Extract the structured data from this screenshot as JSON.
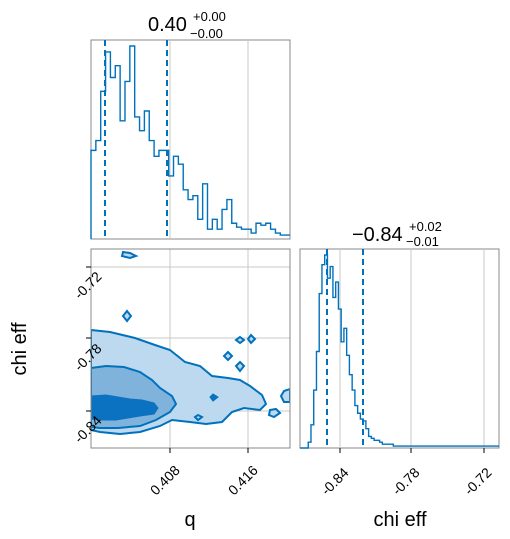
{
  "colors": {
    "line": "#0072bd",
    "fill_light": "#bcd9ef",
    "fill_mid": "#7fb3dc",
    "fill_dark": "#0b72c1",
    "grid": "#c8c8c8",
    "frame": "#888888"
  },
  "titles": {
    "q": {
      "value": "0.40",
      "plus": "+0.00",
      "minus": "−0.00"
    },
    "chi_eff": {
      "value": "−0.84",
      "plus": "+0.02",
      "minus": "−0.01"
    }
  },
  "axis_labels": {
    "x_left": "q",
    "x_right": "chi eff",
    "y_joint": "chi eff"
  },
  "chart_data": [
    {
      "type": "histogram",
      "panel": "q marginal",
      "x_range": [
        0.4,
        0.4205
      ],
      "quantile_lines": [
        0.4015,
        0.408
      ],
      "ticks": [
        0.408,
        0.416
      ],
      "bin_edges_start": 0.4,
      "bin_width": 0.0005,
      "counts": [
        45,
        50,
        75,
        95,
        82,
        88,
        60,
        80,
        98,
        62,
        55,
        65,
        50,
        42,
        45,
        45,
        32,
        42,
        38,
        25,
        20,
        22,
        10,
        28,
        5,
        10,
        5,
        15,
        20,
        8,
        6,
        5,
        5,
        3,
        8,
        7,
        8,
        5,
        3,
        2,
        2
      ]
    },
    {
      "type": "histogram",
      "panel": "chi eff marginal",
      "x_range": [
        -0.855,
        -0.71
      ],
      "quantile_lines": [
        -0.849,
        -0.822
      ],
      "ticks": [
        -0.84,
        -0.78,
        -0.72
      ],
      "bin_edges_start": -0.855,
      "bin_width": 0.002,
      "counts": [
        0,
        0,
        0,
        3,
        12,
        30,
        50,
        80,
        95,
        100,
        88,
        94,
        78,
        86,
        72,
        55,
        62,
        48,
        38,
        30,
        22,
        18,
        15,
        14,
        10,
        6,
        5,
        4,
        4,
        3,
        2,
        2,
        2,
        2,
        1,
        1,
        1,
        1,
        1,
        1,
        1,
        1,
        1,
        1,
        1,
        1,
        1,
        1,
        1,
        1,
        1,
        1,
        1,
        1,
        1,
        1,
        1,
        1,
        1,
        1,
        1,
        1,
        1,
        1,
        1,
        1,
        1,
        1,
        1,
        1,
        1,
        1,
        1
      ]
    },
    {
      "type": "contour",
      "panel": "q vs chi eff joint",
      "x_range": [
        0.4,
        0.4205
      ],
      "y_range": [
        -0.855,
        -0.71
      ],
      "x_ticks": [
        0.408,
        0.416
      ],
      "y_ticks": [
        -0.84,
        -0.78,
        -0.72
      ],
      "levels": [
        "outer",
        "middle",
        "inner"
      ]
    }
  ]
}
